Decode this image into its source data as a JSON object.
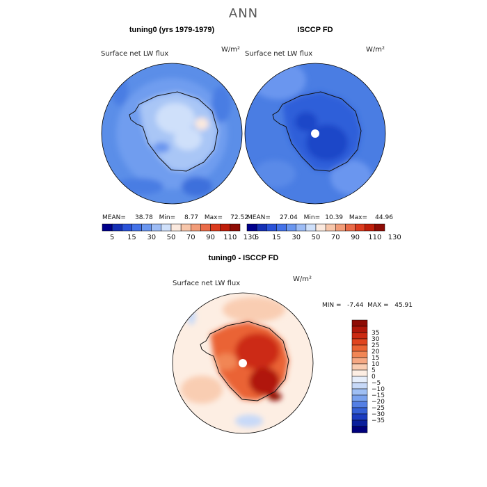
{
  "figure": {
    "title": "ANN",
    "units": "W/m²"
  },
  "panels": {
    "model": {
      "title": "tuning0 (yrs 1979-1979)",
      "variable": "Surface net LW flux",
      "units": "W/m²",
      "mean_label": "MEAN=",
      "mean": "38.78",
      "min_label": "Min=",
      "min": "8.77",
      "max_label": "Max=",
      "max": "72.52"
    },
    "obs": {
      "title": "ISCCP FD",
      "variable": "Surface net LW flux",
      "units": "W/m²",
      "mean_label": "MEAN=",
      "mean": "27.04",
      "min_label": "Min=",
      "min": "10.39",
      "max_label": "Max=",
      "max": "44.96"
    },
    "diff": {
      "title": "tuning0 - ISCCP FD",
      "variable": "Surface net LW flux",
      "units": "W/m²",
      "stats": "MIN =   -7.44  MAX =   45.91"
    }
  },
  "chart_data": [
    {
      "type": "heatmap",
      "projection": "south-polar-stereographic",
      "title": "tuning0 (yrs 1979-1979)",
      "variable": "Surface net LW flux",
      "units": "W/m²",
      "mean": 38.78,
      "min": 8.77,
      "max": 72.52,
      "colorbar": {
        "orientation": "horizontal",
        "tick_labels": [
          "5",
          "15",
          "30",
          "50",
          "70",
          "90",
          "110",
          "130"
        ],
        "colors": [
          "#00008b",
          "#1530b5",
          "#2a52d8",
          "#4472e8",
          "#6a96ef",
          "#9dbcf5",
          "#cfe0fa",
          "#fbe9de",
          "#f7c6aa",
          "#f29c78",
          "#ea6b48",
          "#dc3b1e",
          "#bf1e0a",
          "#8e0c05"
        ]
      }
    },
    {
      "type": "heatmap",
      "projection": "south-polar-stereographic",
      "title": "ISCCP FD",
      "variable": "Surface net LW flux",
      "units": "W/m²",
      "mean": 27.04,
      "min": 10.39,
      "max": 44.96,
      "colorbar": {
        "orientation": "horizontal",
        "tick_labels": [
          "5",
          "15",
          "30",
          "50",
          "70",
          "90",
          "110",
          "130"
        ],
        "colors": [
          "#00008b",
          "#1530b5",
          "#2a52d8",
          "#4472e8",
          "#6a96ef",
          "#9dbcf5",
          "#cfe0fa",
          "#fbe9de",
          "#f7c6aa",
          "#f29c78",
          "#ea6b48",
          "#dc3b1e",
          "#bf1e0a",
          "#8e0c05"
        ]
      }
    },
    {
      "type": "heatmap",
      "projection": "south-polar-stereographic",
      "title": "tuning0 - ISCCP FD",
      "variable": "Surface net LW flux",
      "units": "W/m²",
      "min": -7.44,
      "max": 45.91,
      "colorbar": {
        "orientation": "vertical",
        "tick_labels": [
          "35",
          "30",
          "25",
          "20",
          "15",
          "10",
          "5",
          "0",
          "−5",
          "−10",
          "−15",
          "−20",
          "−25",
          "−30",
          "−35"
        ],
        "colors": [
          "#8e0c05",
          "#b0170a",
          "#cc2a12",
          "#e0451f",
          "#ea6434",
          "#f18655",
          "#f5a883",
          "#f9cdb2",
          "#fdeee3",
          "#e6eefb",
          "#c7d9f8",
          "#9fbff4",
          "#7aa2ee",
          "#547fe4",
          "#3560d6",
          "#1b3cc0",
          "#0a1f9c",
          "#00007c"
        ]
      }
    }
  ]
}
